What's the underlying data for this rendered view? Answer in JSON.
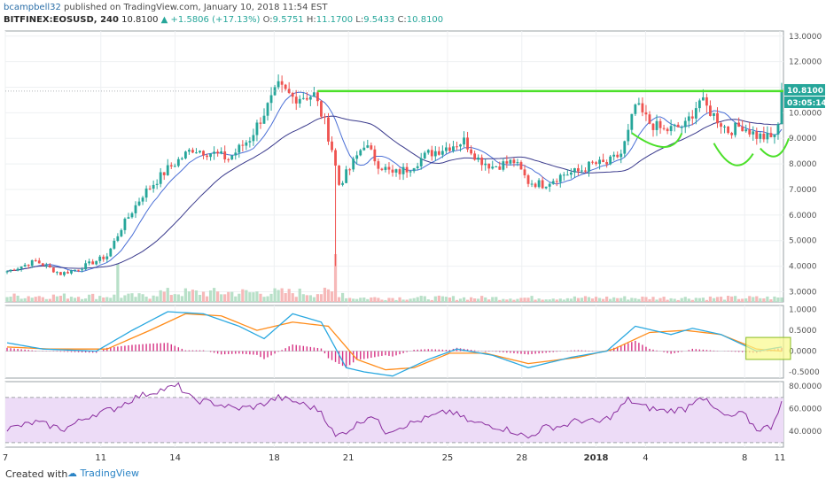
{
  "header": {
    "author": "bcampbell32",
    "published": "published on TradingView.com, January 10, 2018 11:54 EST",
    "symbol": "BITFINEX:EOSUSD, 240",
    "last": "10.8100",
    "change": "▲ +1.5806 (+17.13%)",
    "o_label": "O:",
    "o": "9.5751",
    "h_label": "H:",
    "h": "11.1700",
    "l_label": "L:",
    "l": "9.5433",
    "c_label": "C:",
    "c": "10.8100"
  },
  "footer": {
    "created_with": "Created with",
    "brand": "TradingView"
  },
  "colors": {
    "bull": "#26a69a",
    "bear": "#ef5350",
    "ma_fast": "#4a6fd6",
    "ma_slow": "#3a3a8c",
    "resistance": "#4ce02a",
    "macd": "#2aa8e0",
    "signal": "#ff8c1a",
    "hist": "#d63384",
    "rsi": "#8b2fa0",
    "rsi_band": "#eddcf7",
    "highlight": "#fafa8c"
  },
  "chart_data": [
    {
      "type": "candlestick",
      "title": "BITFINEX:EOSUSD, 240",
      "ylim": [
        2.6,
        13.2
      ],
      "y_ticks": [
        "13.0000",
        "12.0000",
        "11.0000",
        "10.0000",
        "9.0000",
        "8.0000",
        "7.0000",
        "6.0000",
        "5.0000",
        "4.0000",
        "3.0000"
      ],
      "x_ticks": [
        "7",
        "11",
        "14",
        "18",
        "21",
        "25",
        "28",
        "2018",
        "4",
        "8",
        "11"
      ],
      "price_tags": [
        "10.8100",
        "03:05:14"
      ],
      "resistance_level": 10.85,
      "anchors": [
        [
          0,
          3.8
        ],
        [
          8,
          4.2
        ],
        [
          15,
          3.7
        ],
        [
          20,
          3.9
        ],
        [
          28,
          4.4
        ],
        [
          32,
          5.5
        ],
        [
          38,
          6.8
        ],
        [
          45,
          7.8
        ],
        [
          52,
          8.6
        ],
        [
          58,
          8.4
        ],
        [
          62,
          8.2
        ],
        [
          68,
          9.0
        ],
        [
          72,
          10.0
        ],
        [
          76,
          11.0
        ],
        [
          80,
          10.6
        ],
        [
          86,
          10.7
        ],
        [
          89,
          9.6
        ],
        [
          91,
          8.6
        ],
        [
          93,
          7.2
        ],
        [
          96,
          7.8
        ],
        [
          100,
          8.8
        ],
        [
          104,
          8.0
        ],
        [
          108,
          7.6
        ],
        [
          112,
          7.8
        ],
        [
          118,
          8.4
        ],
        [
          124,
          8.7
        ],
        [
          128,
          8.9
        ],
        [
          132,
          8.2
        ],
        [
          136,
          7.9
        ],
        [
          142,
          8.1
        ],
        [
          146,
          7.3
        ],
        [
          150,
          7.2
        ],
        [
          156,
          7.6
        ],
        [
          160,
          7.7
        ],
        [
          164,
          8.0
        ],
        [
          168,
          8.0
        ],
        [
          172,
          8.4
        ],
        [
          174,
          9.2
        ],
        [
          176,
          10.3
        ],
        [
          180,
          9.6
        ],
        [
          184,
          9.3
        ],
        [
          190,
          9.5
        ],
        [
          194,
          10.5
        ],
        [
          198,
          9.9
        ],
        [
          202,
          9.3
        ],
        [
          206,
          9.5
        ],
        [
          210,
          9.1
        ],
        [
          214,
          9.0
        ],
        [
          216,
          9.4
        ],
        [
          217,
          10.8
        ]
      ],
      "candle_count": 218
    },
    {
      "type": "line",
      "title": "MACD",
      "ylim": [
        -0.65,
        1.1
      ],
      "y_ticks": [
        "1.0000",
        "0.5000",
        "0.0000",
        "-0.5000"
      ],
      "series": [
        {
          "values": [
            [
              0,
              0.2
            ],
            [
              10,
              0.05
            ],
            [
              25,
              0.0
            ],
            [
              35,
              0.5
            ],
            [
              45,
              0.95
            ],
            [
              55,
              0.9
            ],
            [
              65,
              0.6
            ],
            [
              72,
              0.3
            ],
            [
              80,
              0.9
            ],
            [
              88,
              0.7
            ],
            [
              95,
              -0.4
            ],
            [
              100,
              -0.5
            ],
            [
              108,
              -0.6
            ],
            [
              118,
              -0.2
            ],
            [
              126,
              0.05
            ],
            [
              136,
              -0.1
            ],
            [
              146,
              -0.4
            ],
            [
              158,
              -0.15
            ],
            [
              168,
              0.0
            ],
            [
              176,
              0.6
            ],
            [
              186,
              0.4
            ],
            [
              192,
              0.55
            ],
            [
              200,
              0.4
            ],
            [
              210,
              0.0
            ],
            [
              217,
              0.1
            ]
          ]
        },
        {
          "values": [
            [
              0,
              0.1
            ],
            [
              12,
              0.05
            ],
            [
              28,
              0.05
            ],
            [
              40,
              0.5
            ],
            [
              50,
              0.9
            ],
            [
              60,
              0.85
            ],
            [
              70,
              0.5
            ],
            [
              80,
              0.7
            ],
            [
              90,
              0.6
            ],
            [
              98,
              -0.2
            ],
            [
              106,
              -0.45
            ],
            [
              114,
              -0.4
            ],
            [
              124,
              -0.05
            ],
            [
              134,
              -0.05
            ],
            [
              146,
              -0.3
            ],
            [
              160,
              -0.15
            ],
            [
              170,
              0.05
            ],
            [
              180,
              0.45
            ],
            [
              190,
              0.5
            ],
            [
              200,
              0.4
            ],
            [
              210,
              0.05
            ],
            [
              217,
              0.0
            ]
          ]
        }
      ]
    },
    {
      "type": "line",
      "title": "RSI",
      "ylim": [
        26,
        84
      ],
      "y_ticks": [
        "80.0000",
        "60.0000",
        "40.0000"
      ],
      "band": [
        30,
        70
      ],
      "series": [
        {
          "values": [
            [
              0,
              42
            ],
            [
              8,
              48
            ],
            [
              16,
              42
            ],
            [
              24,
              55
            ],
            [
              30,
              60
            ],
            [
              36,
              70
            ],
            [
              42,
              76
            ],
            [
              48,
              80
            ],
            [
              52,
              68
            ],
            [
              58,
              65
            ],
            [
              64,
              60
            ],
            [
              70,
              62
            ],
            [
              76,
              70
            ],
            [
              82,
              65
            ],
            [
              88,
              58
            ],
            [
              92,
              35
            ],
            [
              96,
              42
            ],
            [
              102,
              55
            ],
            [
              106,
              40
            ],
            [
              112,
              46
            ],
            [
              118,
              52
            ],
            [
              124,
              58
            ],
            [
              130,
              48
            ],
            [
              136,
              45
            ],
            [
              142,
              40
            ],
            [
              146,
              34
            ],
            [
              150,
              43
            ],
            [
              156,
              45
            ],
            [
              160,
              50
            ],
            [
              166,
              48
            ],
            [
              170,
              55
            ],
            [
              174,
              68
            ],
            [
              178,
              62
            ],
            [
              184,
              58
            ],
            [
              190,
              60
            ],
            [
              194,
              72
            ],
            [
              198,
              60
            ],
            [
              202,
              52
            ],
            [
              206,
              56
            ],
            [
              210,
              42
            ],
            [
              214,
              44
            ],
            [
              217,
              66
            ]
          ]
        }
      ]
    }
  ]
}
